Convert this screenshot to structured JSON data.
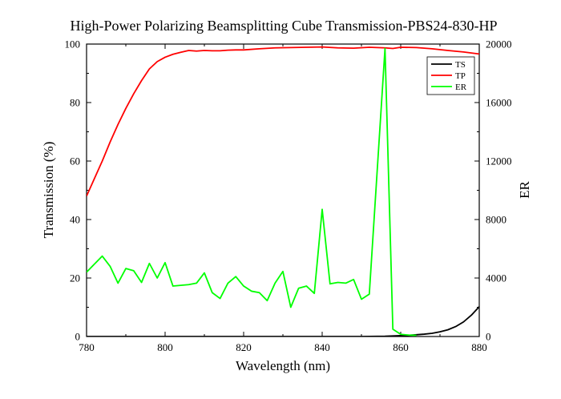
{
  "chart_data": {
    "type": "line",
    "title": "High-Power Polarizing Beamsplitting Cube Transmission-PBS24-830-HP",
    "xlabel": "Wavelength (nm)",
    "ylabel": "Transmission (%)",
    "y2label": "ER",
    "xlim": [
      780,
      880
    ],
    "ylim": [
      0,
      100
    ],
    "y2lim": [
      0,
      20000
    ],
    "xticks": [
      "780",
      "800",
      "820",
      "840",
      "860",
      "880"
    ],
    "yticks": [
      "0",
      "20",
      "40",
      "60",
      "80",
      "100"
    ],
    "y2ticks": [
      "0",
      "4000",
      "8000",
      "12000",
      "16000",
      "20000"
    ],
    "grid": false,
    "legend_position": "top-right",
    "series": [
      {
        "name": "TS",
        "axis": "left",
        "color": "#000000",
        "x": [
          780,
          790,
          800,
          810,
          820,
          830,
          840,
          850,
          856,
          858,
          860,
          862,
          864,
          866,
          868,
          870,
          872,
          874,
          876,
          878,
          880
        ],
        "y": [
          0,
          0,
          0,
          0,
          0,
          0,
          0,
          0,
          0.1,
          0.2,
          0.3,
          0.4,
          0.6,
          0.8,
          1.1,
          1.6,
          2.3,
          3.4,
          5.0,
          7.3,
          10.2
        ]
      },
      {
        "name": "TP",
        "axis": "left",
        "color": "#ff0000",
        "x": [
          780,
          782,
          784,
          786,
          788,
          790,
          792,
          794,
          796,
          798,
          800,
          802,
          804,
          806,
          808,
          810,
          812,
          814,
          816,
          818,
          820,
          824,
          828,
          832,
          836,
          840,
          844,
          848,
          852,
          856,
          858,
          860,
          864,
          868,
          872,
          876,
          880
        ],
        "y": [
          48,
          54,
          60,
          66.5,
          72.5,
          78,
          83,
          87.5,
          91.5,
          94,
          95.5,
          96.5,
          97.2,
          97.8,
          97.6,
          97.8,
          97.7,
          97.7,
          97.9,
          98.0,
          98.0,
          98.4,
          98.7,
          98.8,
          98.9,
          99.0,
          98.7,
          98.6,
          98.9,
          98.7,
          98.5,
          98.9,
          98.8,
          98.4,
          97.8,
          97.3,
          96.6
        ]
      },
      {
        "name": "ER",
        "axis": "right",
        "color": "#00ff00",
        "x": [
          780,
          782,
          784,
          786,
          788,
          790,
          792,
          794,
          796,
          798,
          800,
          802,
          804,
          806,
          808,
          810,
          812,
          814,
          816,
          818,
          820,
          822,
          824,
          826,
          828,
          830,
          832,
          834,
          836,
          838,
          840,
          842,
          844,
          846,
          848,
          850,
          852,
          854,
          856,
          858,
          860,
          862,
          864
        ],
        "y": [
          4400,
          4950,
          5500,
          4800,
          3650,
          4650,
          4500,
          3700,
          5000,
          4000,
          5050,
          3450,
          3500,
          3550,
          3650,
          4350,
          3000,
          2600,
          3650,
          4100,
          3450,
          3100,
          3000,
          2450,
          3650,
          4450,
          2000,
          3300,
          3450,
          2950,
          8700,
          3600,
          3700,
          3650,
          3900,
          2550,
          2900,
          11300,
          19700,
          500,
          150,
          100,
          80
        ]
      }
    ]
  }
}
